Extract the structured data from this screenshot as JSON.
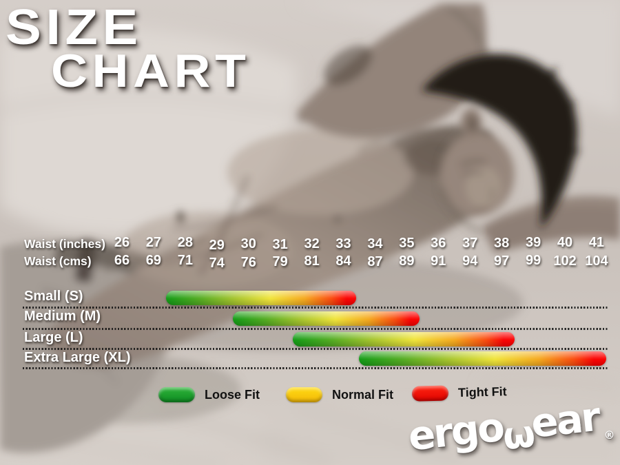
{
  "title": {
    "line1": "SIZE",
    "line2": "CHART"
  },
  "brand": {
    "part1": "ergo",
    "w": "ω",
    "part2": "ear",
    "registered": "®"
  },
  "colors": {
    "accent_green": "#18a12b",
    "accent_yellow": "#ffd303",
    "accent_red": "#fd0303",
    "text_light": "#ffffff",
    "text_dark": "#121212",
    "divider": "#161616"
  },
  "chart_data": {
    "type": "bar",
    "orientation": "horizontal",
    "title": "SIZE CHART",
    "x_axis": {
      "inches_label": "Waist (inches)",
      "cms_label": "Waist (cms)",
      "inches": [
        "26",
        "27",
        "28",
        "29",
        "30",
        "31",
        "32",
        "33",
        "34",
        "35",
        "36",
        "37",
        "38",
        "39",
        "40",
        "41"
      ],
      "cms": [
        "66",
        "69",
        "71",
        "74",
        "76",
        "79",
        "81",
        "84",
        "87",
        "89",
        "91",
        "94",
        "97",
        "99",
        "102",
        "104"
      ],
      "range_inches": [
        26,
        41
      ]
    },
    "bars": [
      {
        "label": "Small (S)",
        "start_inches": 27.4,
        "end_inches": 33.4
      },
      {
        "label": "Medium (M)",
        "start_inches": 29.5,
        "end_inches": 35.4
      },
      {
        "label": "Large (L)",
        "start_inches": 31.4,
        "end_inches": 38.4
      },
      {
        "label": "Extra Large (XL)",
        "start_inches": 33.5,
        "end_inches": 41.3
      }
    ],
    "gradient_stops": [
      "#149c17",
      "#56ad24",
      "#a6c52f",
      "#f0e43b",
      "#f5a81f",
      "#fa4d10",
      "#fb0404"
    ],
    "legend": [
      {
        "label": "Loose Fit",
        "color_top": "#2eb33a",
        "color_bottom": "#0f8c22"
      },
      {
        "label": "Normal Fit",
        "color_top": "#ffdb14",
        "color_bottom": "#f3b808"
      },
      {
        "label": "Tight Fit",
        "color_top": "#ff2512",
        "color_bottom": "#e00300"
      }
    ],
    "legend_position": "bottom",
    "grid": false
  }
}
